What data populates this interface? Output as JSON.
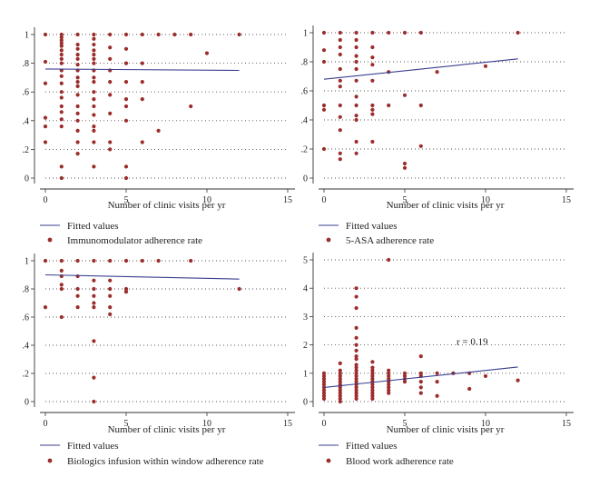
{
  "chart_data": [
    {
      "type": "scatter",
      "xlabel": "Number of clinic visits per yr",
      "ylabel": "",
      "xlim": [
        0,
        15
      ],
      "ylim": [
        0,
        1
      ],
      "xticks": [
        "0",
        "5",
        "10",
        "15"
      ],
      "yticks": [
        "0",
        ".2",
        ".4",
        ".6",
        ".8",
        "1"
      ],
      "grid": "horizontal dotted",
      "legend_position": "bottom",
      "fit_label": "Fitted values",
      "scatter_label": "Immunomodulator adherence rate",
      "fit_line": {
        "x": [
          0,
          12
        ],
        "y": [
          0.76,
          0.75
        ]
      },
      "points": [
        [
          0,
          1
        ],
        [
          0,
          0.81
        ],
        [
          0,
          0.66
        ],
        [
          0,
          0.42
        ],
        [
          0,
          0.36
        ],
        [
          0,
          0.25
        ],
        [
          1,
          1
        ],
        [
          1,
          0.98
        ],
        [
          1,
          0.96
        ],
        [
          1,
          0.94
        ],
        [
          1,
          0.92
        ],
        [
          1,
          0.89
        ],
        [
          1,
          0.86
        ],
        [
          1,
          0.83
        ],
        [
          1,
          0.8
        ],
        [
          1,
          0.75
        ],
        [
          1,
          0.71
        ],
        [
          1,
          0.66
        ],
        [
          1,
          0.6
        ],
        [
          1,
          0.56
        ],
        [
          1,
          0.5
        ],
        [
          1,
          0.46
        ],
        [
          1,
          0.41
        ],
        [
          1,
          0.36
        ],
        [
          1,
          0.08
        ],
        [
          1,
          0
        ],
        [
          2,
          1
        ],
        [
          2,
          0.93
        ],
        [
          2,
          0.9
        ],
        [
          2,
          0.86
        ],
        [
          2,
          0.83
        ],
        [
          2,
          0.79
        ],
        [
          2,
          0.75
        ],
        [
          2,
          0.7
        ],
        [
          2,
          0.67
        ],
        [
          2,
          0.64
        ],
        [
          2,
          0.58
        ],
        [
          2,
          0.5
        ],
        [
          2,
          0.45
        ],
        [
          2,
          0.4
        ],
        [
          2,
          0.33
        ],
        [
          2,
          0.25
        ],
        [
          2,
          0.17
        ],
        [
          3,
          1
        ],
        [
          3,
          0.97
        ],
        [
          3,
          0.93
        ],
        [
          3,
          0.89
        ],
        [
          3,
          0.86
        ],
        [
          3,
          0.83
        ],
        [
          3,
          0.8
        ],
        [
          3,
          0.75
        ],
        [
          3,
          0.7
        ],
        [
          3,
          0.67
        ],
        [
          3,
          0.6
        ],
        [
          3,
          0.55
        ],
        [
          3,
          0.5
        ],
        [
          3,
          0.44
        ],
        [
          3,
          0.36
        ],
        [
          3,
          0.33
        ],
        [
          3,
          0.25
        ],
        [
          3,
          0.08
        ],
        [
          4,
          1
        ],
        [
          4,
          0.91
        ],
        [
          4,
          0.83
        ],
        [
          4,
          0.75
        ],
        [
          4,
          0.67
        ],
        [
          4,
          0.58
        ],
        [
          4,
          0.45
        ],
        [
          4,
          0.25
        ],
        [
          4,
          0.2
        ],
        [
          5,
          1
        ],
        [
          5,
          0.9
        ],
        [
          5,
          0.8
        ],
        [
          5,
          0.67
        ],
        [
          5,
          0.55
        ],
        [
          5,
          0.5
        ],
        [
          5,
          0.4
        ],
        [
          5,
          0.08
        ],
        [
          5,
          0
        ],
        [
          6,
          1
        ],
        [
          6,
          0.8
        ],
        [
          6,
          0.67
        ],
        [
          6,
          0.55
        ],
        [
          6,
          0.25
        ],
        [
          7,
          1
        ],
        [
          7,
          0.33
        ],
        [
          8,
          1
        ],
        [
          9,
          1
        ],
        [
          9,
          0.5
        ],
        [
          10,
          0.87
        ],
        [
          12,
          1
        ]
      ]
    },
    {
      "type": "scatter",
      "xlabel": "Number of clinic visits per yr",
      "ylabel": "",
      "xlim": [
        0,
        15
      ],
      "ylim": [
        0,
        1
      ],
      "xticks": [
        "0",
        "5",
        "10",
        "15"
      ],
      "yticks": [
        "0",
        ".2",
        ".4",
        ".6",
        ".8",
        "1"
      ],
      "grid": "horizontal dotted",
      "legend_position": "bottom",
      "fit_label": "Fitted values",
      "scatter_label": "5-ASA adherence rate",
      "fit_line": {
        "x": [
          0,
          12
        ],
        "y": [
          0.68,
          0.82
        ]
      },
      "points": [
        [
          0,
          1
        ],
        [
          0,
          0.88
        ],
        [
          0,
          0.8
        ],
        [
          0,
          0.5
        ],
        [
          0,
          0.47
        ],
        [
          0,
          0.2
        ],
        [
          1,
          1
        ],
        [
          1,
          0.95
        ],
        [
          1,
          0.9
        ],
        [
          1,
          0.85
        ],
        [
          1,
          0.75
        ],
        [
          1,
          0.67
        ],
        [
          1,
          0.63
        ],
        [
          1,
          0.5
        ],
        [
          1,
          0.42
        ],
        [
          1,
          0.33
        ],
        [
          1,
          0.17
        ],
        [
          1,
          0.13
        ],
        [
          2,
          1
        ],
        [
          2,
          0.95
        ],
        [
          2,
          0.9
        ],
        [
          2,
          0.84
        ],
        [
          2,
          0.8
        ],
        [
          2,
          0.75
        ],
        [
          2,
          0.67
        ],
        [
          2,
          0.56
        ],
        [
          2,
          0.5
        ],
        [
          2,
          0.43
        ],
        [
          2,
          0.4
        ],
        [
          2,
          0.25
        ],
        [
          2,
          0.17
        ],
        [
          3,
          1
        ],
        [
          3,
          0.9
        ],
        [
          3,
          0.83
        ],
        [
          3,
          0.78
        ],
        [
          3,
          0.67
        ],
        [
          3,
          0.5
        ],
        [
          3,
          0.47
        ],
        [
          3,
          0.44
        ],
        [
          3,
          0.25
        ],
        [
          4,
          1
        ],
        [
          4,
          0.73
        ],
        [
          4,
          0.5
        ],
        [
          5,
          1
        ],
        [
          5,
          0.57
        ],
        [
          5,
          0.1
        ],
        [
          5,
          0.07
        ],
        [
          6,
          1
        ],
        [
          6,
          0.5
        ],
        [
          6,
          0.22
        ],
        [
          7,
          0.73
        ],
        [
          10,
          0.77
        ],
        [
          12,
          1
        ]
      ]
    },
    {
      "type": "scatter",
      "xlabel": "Number of clinic visits per yr",
      "ylabel": "",
      "xlim": [
        0,
        15
      ],
      "ylim": [
        0,
        1
      ],
      "xticks": [
        "0",
        "5",
        "10",
        "15"
      ],
      "yticks": [
        "0",
        ".2",
        ".4",
        ".6",
        ".8",
        "1"
      ],
      "grid": "horizontal dotted",
      "legend_position": "bottom",
      "fit_label": "Fitted values",
      "scatter_label": "Biologics infusion within window adherence rate",
      "fit_line": {
        "x": [
          0,
          12
        ],
        "y": [
          0.9,
          0.87
        ]
      },
      "points": [
        [
          0,
          1
        ],
        [
          0,
          0.67
        ],
        [
          1,
          1
        ],
        [
          1,
          0.93
        ],
        [
          1,
          0.89
        ],
        [
          1,
          0.83
        ],
        [
          1,
          0.8
        ],
        [
          1,
          0.6
        ],
        [
          2,
          1
        ],
        [
          2,
          0.89
        ],
        [
          2,
          0.8
        ],
        [
          2,
          0.75
        ],
        [
          2,
          0.67
        ],
        [
          3,
          1
        ],
        [
          3,
          0.86
        ],
        [
          3,
          0.8
        ],
        [
          3,
          0.75
        ],
        [
          3,
          0.7
        ],
        [
          3,
          0.67
        ],
        [
          3,
          0.43
        ],
        [
          3,
          0.17
        ],
        [
          3,
          0
        ],
        [
          4,
          1
        ],
        [
          4,
          0.86
        ],
        [
          4,
          0.8
        ],
        [
          4,
          0.75
        ],
        [
          4,
          0.67
        ],
        [
          4,
          0.62
        ],
        [
          5,
          1
        ],
        [
          5,
          0.8
        ],
        [
          5,
          0.78
        ],
        [
          6,
          1
        ],
        [
          7,
          1
        ],
        [
          9,
          1
        ],
        [
          12,
          0.8
        ]
      ]
    },
    {
      "type": "scatter",
      "xlabel": "Number of clinic visits per yr",
      "ylabel": "",
      "xlim": [
        0,
        15
      ],
      "ylim": [
        0,
        5
      ],
      "xticks": [
        "0",
        "5",
        "10",
        "15"
      ],
      "yticks": [
        "0",
        "1",
        "2",
        "3",
        "4",
        "5"
      ],
      "grid": "horizontal dotted",
      "legend_position": "bottom",
      "fit_label": "Fitted values",
      "scatter_label": "Blood work adherence rate",
      "annotation": "r = 0.19",
      "fit_line": {
        "x": [
          0,
          12
        ],
        "y": [
          0.5,
          1.22
        ]
      },
      "points": [
        [
          0,
          1
        ],
        [
          0,
          0.9
        ],
        [
          0,
          0.8
        ],
        [
          0,
          0.7
        ],
        [
          0,
          0.6
        ],
        [
          0,
          0.5
        ],
        [
          0,
          0.4
        ],
        [
          0,
          0.3
        ],
        [
          0,
          0.2
        ],
        [
          0,
          0.1
        ],
        [
          1,
          1.35
        ],
        [
          1,
          1.1
        ],
        [
          1,
          1
        ],
        [
          1,
          0.9
        ],
        [
          1,
          0.8
        ],
        [
          1,
          0.7
        ],
        [
          1,
          0.6
        ],
        [
          1,
          0.5
        ],
        [
          1,
          0.4
        ],
        [
          1,
          0.3
        ],
        [
          1,
          0.2
        ],
        [
          1,
          0.1
        ],
        [
          1,
          0
        ],
        [
          2,
          4
        ],
        [
          2,
          3.7
        ],
        [
          2,
          3.3
        ],
        [
          2,
          2.6
        ],
        [
          2,
          2.25
        ],
        [
          2,
          2
        ],
        [
          2,
          1.8
        ],
        [
          2,
          1.6
        ],
        [
          2,
          1.5
        ],
        [
          2,
          1.3
        ],
        [
          2,
          1.2
        ],
        [
          2,
          1.1
        ],
        [
          2,
          1
        ],
        [
          2,
          0.9
        ],
        [
          2,
          0.8
        ],
        [
          2,
          0.7
        ],
        [
          2,
          0.6
        ],
        [
          2,
          0.5
        ],
        [
          2,
          0.4
        ],
        [
          2,
          0.3
        ],
        [
          2,
          0.2
        ],
        [
          2,
          0.1
        ],
        [
          3,
          1.4
        ],
        [
          3,
          1.2
        ],
        [
          3,
          1.1
        ],
        [
          3,
          1
        ],
        [
          3,
          0.9
        ],
        [
          3,
          0.8
        ],
        [
          3,
          0.7
        ],
        [
          3,
          0.6
        ],
        [
          3,
          0.5
        ],
        [
          3,
          0.4
        ],
        [
          3,
          0.3
        ],
        [
          3,
          0.2
        ],
        [
          3,
          0.1
        ],
        [
          4,
          5
        ],
        [
          4,
          1.1
        ],
        [
          4,
          1
        ],
        [
          4,
          0.9
        ],
        [
          4,
          0.8
        ],
        [
          4,
          0.7
        ],
        [
          4,
          0.6
        ],
        [
          4,
          0.5
        ],
        [
          4,
          0.4
        ],
        [
          4,
          0.3
        ],
        [
          5,
          1
        ],
        [
          5,
          0.9
        ],
        [
          5,
          0.8
        ],
        [
          5,
          0.7
        ],
        [
          6,
          1.6
        ],
        [
          6,
          1
        ],
        [
          6,
          0.9
        ],
        [
          6,
          0.7
        ],
        [
          6,
          0.5
        ],
        [
          6,
          0.3
        ],
        [
          7,
          1
        ],
        [
          7,
          0.7
        ],
        [
          7,
          0.2
        ],
        [
          8,
          1
        ],
        [
          9,
          1
        ],
        [
          9,
          0.45
        ],
        [
          10,
          0.9
        ],
        [
          12,
          0.75
        ]
      ]
    }
  ]
}
